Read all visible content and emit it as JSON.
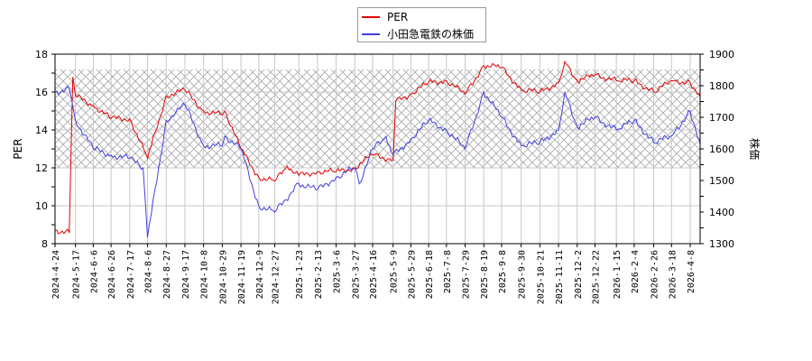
{
  "legend": {
    "items": [
      {
        "label": "PER",
        "color": "#e00000"
      },
      {
        "label": "小田急電鉄の株価",
        "color": "#4040e0"
      }
    ]
  },
  "axes": {
    "left_title": "PER",
    "right_title": "株価",
    "left_ticks": [
      "8",
      "10",
      "12",
      "14",
      "16",
      "18"
    ],
    "right_ticks": [
      "1300",
      "1400",
      "1500",
      "1600",
      "1700",
      "1800",
      "1900"
    ]
  },
  "chart_data": {
    "type": "line",
    "title": "",
    "xlabel": "",
    "ylabel": "PER",
    "y2label": "株価",
    "ylim": [
      8,
      18
    ],
    "y2lim": [
      1300,
      1900
    ],
    "grid": true,
    "legend_position": "top-center",
    "shaded_band": {
      "axis": "left",
      "from": 12.0,
      "to": 17.2,
      "style": "crosshatch"
    },
    "x_ticks": [
      "2024-4-24",
      "2024-5-17",
      "2024-6-6",
      "2024-6-26",
      "2024-7-17",
      "2024-8-6",
      "2024-8-27",
      "2024-9-17",
      "2024-10-8",
      "2024-10-29",
      "2024-11-19",
      "2024-12-9",
      "2024-12-27",
      "2025-1-23",
      "2025-2-13",
      "2025-3-6",
      "2025-3-27",
      "2025-4-16",
      "2025-5-9",
      "2025-5-29",
      "2025-6-18",
      "2025-7-8",
      "2025-7-29",
      "2025-8-19",
      "2025-9-8",
      "2025-9-30",
      "2025-10-21",
      "2025-11-11",
      "2025-12-2",
      "2025-12-22",
      "2026-1-15",
      "2026-2-4",
      "2026-2-26",
      "2026-3-18",
      "2026-4-8"
    ],
    "series": [
      {
        "name": "PER",
        "axis": "left",
        "color": "#e00000",
        "x": [
          "2024-4-24",
          "2024-5-10",
          "2024-5-14",
          "2024-5-17",
          "2024-6-6",
          "2024-6-26",
          "2024-7-17",
          "2024-8-6",
          "2024-8-27",
          "2024-9-17",
          "2024-10-8",
          "2024-10-29",
          "2024-11-1",
          "2024-11-19",
          "2024-12-9",
          "2024-12-27",
          "2025-1-10",
          "2025-1-23",
          "2025-2-13",
          "2025-3-6",
          "2025-3-27",
          "2025-4-16",
          "2025-5-9",
          "2025-5-12",
          "2025-5-29",
          "2025-6-18",
          "2025-7-8",
          "2025-7-29",
          "2025-8-19",
          "2025-9-8",
          "2025-9-30",
          "2025-10-21",
          "2025-11-11",
          "2025-11-18",
          "2025-12-2",
          "2025-12-22",
          "2026-1-15",
          "2026-2-4",
          "2026-2-26",
          "2026-3-18",
          "2026-4-8",
          "2026-4-20"
        ],
        "values": [
          8.7,
          8.6,
          16.8,
          15.8,
          15.3,
          14.6,
          14.6,
          12.5,
          15.8,
          16.1,
          15.0,
          14.8,
          15.0,
          13.0,
          11.5,
          11.3,
          12.1,
          11.6,
          11.8,
          11.8,
          12.0,
          12.7,
          12.4,
          15.5,
          15.9,
          16.5,
          16.6,
          15.9,
          17.4,
          17.3,
          16.1,
          16.0,
          16.5,
          17.6,
          16.6,
          16.9,
          16.6,
          16.6,
          16.0,
          16.6,
          16.5,
          15.6
        ]
      },
      {
        "name": "小田急電鉄の株価",
        "axis": "right",
        "color": "#4040e0",
        "x": [
          "2024-4-24",
          "2024-5-10",
          "2024-5-17",
          "2024-6-6",
          "2024-6-26",
          "2024-7-17",
          "2024-8-1",
          "2024-8-6",
          "2024-8-27",
          "2024-9-17",
          "2024-10-8",
          "2024-10-29",
          "2024-11-1",
          "2024-11-19",
          "2024-12-9",
          "2024-12-27",
          "2025-1-23",
          "2025-2-13",
          "2025-3-6",
          "2025-3-27",
          "2025-4-1",
          "2025-4-16",
          "2025-5-1",
          "2025-5-9",
          "2025-5-29",
          "2025-6-18",
          "2025-7-8",
          "2025-7-29",
          "2025-8-19",
          "2025-9-8",
          "2025-9-30",
          "2025-10-21",
          "2025-11-11",
          "2025-11-18",
          "2025-12-2",
          "2025-12-22",
          "2026-1-15",
          "2026-2-4",
          "2026-2-26",
          "2026-3-18",
          "2026-4-8",
          "2026-4-20"
        ],
        "values": [
          1780,
          1790,
          1690,
          1600,
          1580,
          1570,
          1540,
          1320,
          1690,
          1740,
          1610,
          1610,
          1640,
          1600,
          1420,
          1400,
          1490,
          1470,
          1510,
          1540,
          1490,
          1600,
          1640,
          1580,
          1630,
          1690,
          1660,
          1600,
          1780,
          1700,
          1610,
          1620,
          1660,
          1780,
          1670,
          1700,
          1660,
          1690,
          1620,
          1640,
          1720,
          1600
        ]
      }
    ]
  }
}
